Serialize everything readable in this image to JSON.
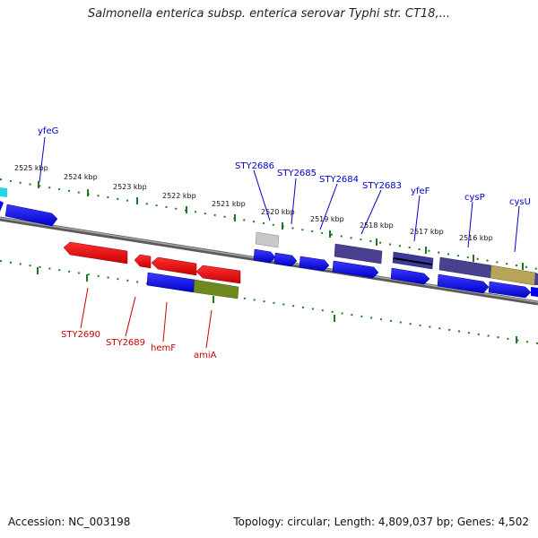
{
  "header": {
    "title": "Salmonella enterica subsp. enterica serovar Typhi str. CT18,..."
  },
  "footer": {
    "accession": "Accession: NC_003198",
    "genome_info": "Topology: circular; Length: 4,809,037 bp; Genes: 4,502"
  },
  "colors": {
    "forward_gene": "#0000ee",
    "reverse_gene": "#ee0000",
    "forward_label": "#0000cc",
    "reverse_label": "#cc0000",
    "backbone": "#7a7a7a",
    "tick": "#1f7a1f"
  },
  "kbp_ticks": [
    {
      "label": "2525 kbp"
    },
    {
      "label": "2524 kbp"
    },
    {
      "label": "2523 kbp"
    },
    {
      "label": "2522 kbp"
    },
    {
      "label": "2521 kbp"
    },
    {
      "label": "2520 kbp"
    },
    {
      "label": "2519 kbp"
    },
    {
      "label": "2518 kbp"
    },
    {
      "label": "2517 kbp"
    },
    {
      "label": "2516 kbp"
    }
  ],
  "forward_gene_labels": [
    "yfeG",
    "STY2686",
    "STY2685",
    "STY2684",
    "STY2683",
    "yfeF",
    "cysP",
    "cysU"
  ],
  "reverse_gene_labels": [
    "STY2690",
    "STY2689",
    "hemF",
    "amiA"
  ]
}
